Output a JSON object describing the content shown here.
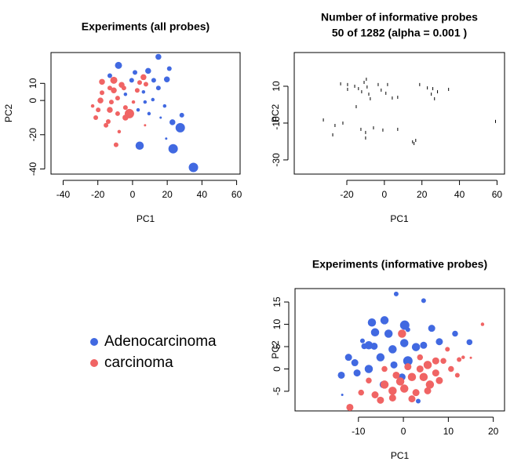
{
  "chart_data": [
    {
      "type": "scatter",
      "title": "Experiments (all probes)",
      "x_label": "PC1",
      "y_label": "PC2",
      "xlim": [
        -47,
        62
      ],
      "ylim": [
        -43,
        28
      ],
      "xticks": [
        -40,
        -20,
        0,
        20,
        40,
        60
      ],
      "yticks": [
        -40,
        -20,
        0,
        10
      ],
      "series": [
        {
          "name": "Adenocarcinoma",
          "color": "#4169e1",
          "x": [
            -8.1,
            14.9,
            1.4,
            9.0,
            21.2,
            19.8,
            12.2,
            6.3,
            14.9,
            28.4,
            23.0,
            27.5,
            4.1,
            23.4,
            35.1,
            11.7,
            18.5,
            3.2,
            -0.5,
            9.5,
            19.4,
            -4.1,
            16.2,
            7.2,
            -13.1
          ],
          "values": [
            20.5,
            25.5,
            16.4,
            17.3,
            18.6,
            12.3,
            11.8,
            5.0,
            7.3,
            -8.6,
            -12.7,
            -15.9,
            -26.4,
            -28.2,
            -39.1,
            0.5,
            -3.2,
            -5.5,
            11.8,
            -7.7,
            -22.3,
            3.6,
            -10,
            -0.9,
            14.5
          ],
          "sizes": [
            3,
            2.5,
            2,
            2.5,
            2,
            2.5,
            2,
            1.5,
            2,
            2,
            2.5,
            4,
            3.5,
            4,
            4,
            1.5,
            1.5,
            1.5,
            2,
            1.5,
            1,
            1.5,
            1,
            1.5,
            2
          ]
        },
        {
          "name": "carcinoma",
          "color": "#f06464",
          "x": [
            -17.6,
            -10.8,
            -6.3,
            -13.1,
            -18.5,
            -8.6,
            -1.8,
            -4.1,
            -13.1,
            -21.2,
            -15.3,
            -9.5,
            -7.7,
            6.3,
            7.7,
            -12.2,
            -23,
            -17.6,
            -5,
            0.5,
            2.7,
            -8.6,
            -14,
            -19.8,
            -10.8,
            -4.1,
            7.2,
            4.1
          ],
          "values": [
            10.9,
            11.8,
            9.1,
            7.3,
            0,
            1.4,
            -7.7,
            -10,
            -5.5,
            -10,
            -14.5,
            -25.9,
            -18.2,
            13.6,
            9.5,
            -0.9,
            -3.2,
            4.5,
            7.3,
            -0.9,
            5.9,
            -7.7,
            -12.3,
            -5.5,
            5.9,
            -4.1,
            -14.5,
            10.5
          ],
          "sizes": [
            2.5,
            3,
            2.5,
            2,
            2.5,
            2,
            4,
            2.5,
            2.5,
            2,
            2,
            2,
            1.5,
            2.5,
            2,
            2,
            1.5,
            2,
            2,
            1.5,
            2,
            2,
            2,
            2,
            2.5,
            2,
            1,
            2
          ]
        }
      ]
    },
    {
      "type": "dash",
      "title": "Number of informative probes",
      "subtitle": "50 of 1282 (alpha = 0.001 )",
      "x_label": "PC1",
      "y_label": "PC2",
      "xlim": [
        -48,
        64
      ],
      "ylim": [
        -37.7,
        28.3
      ],
      "xticks": [
        -20,
        0,
        20,
        40,
        60
      ],
      "yticks": [
        -30,
        -10,
        10
      ],
      "color": "#000000",
      "x": [
        -23.3,
        -19.6,
        -19.6,
        -15.8,
        -13.8,
        -12.1,
        -10.8,
        -9.6,
        -9.2,
        -8.3,
        -7.5,
        -3.3,
        -1.7,
        0.8,
        1.7,
        4.2,
        7.1,
        18.8,
        22.9,
        25,
        25.8,
        26.7,
        28.3,
        34.2,
        -15,
        -32.5,
        -26.3,
        -22.1,
        -27.5,
        -12.5,
        -10,
        -5.8,
        -0.8,
        7.1,
        15,
        16.7,
        15.8,
        59.2,
        -10
      ],
      "values": [
        11.3,
        10.9,
        8.3,
        10,
        8.7,
        7.0,
        12.1,
        13.8,
        9.6,
        5.7,
        3.2,
        10.9,
        7.9,
        6.2,
        10.9,
        3.6,
        4.0,
        10.9,
        9.1,
        5.7,
        8.7,
        3.2,
        7.0,
        8.3,
        -1.1,
        -8.3,
        -11.3,
        -10,
        -16.4,
        -13.4,
        -15.1,
        -12.6,
        -13.8,
        -13.4,
        -20.2,
        -19.4,
        -21.1,
        -9.1,
        -18.1
      ]
    },
    {
      "type": "scatter",
      "title": "Experiments (informative probes)",
      "x_label": "PC1",
      "y_label": "PC2",
      "xlim": [
        -24.1,
        22.5
      ],
      "ylim": [
        -9.4,
        18
      ],
      "xticks": [
        -10,
        0,
        10,
        20
      ],
      "yticks": [
        -5,
        0,
        5,
        10,
        15
      ],
      "series": [
        {
          "color": "#4169e1",
          "x": [
            -1.6,
            4.5,
            -7,
            -4.2,
            0.3,
            6.3,
            0.2,
            -7.7,
            -9.1,
            -3.3,
            -6.3,
            -2.4,
            1,
            -5.1,
            -2.1,
            -12.2,
            -10.8,
            -7.7,
            -4.5,
            -0.3,
            14.7,
            8,
            11.5,
            3.3,
            -13.6,
            -13.8,
            -10.3,
            -8.7,
            -6.5,
            2.8,
            4.5,
            1
          ],
          "values": [
            16.8,
            15.3,
            10.4,
            10.9,
            9.8,
            9.1,
            5.8,
            5.3,
            6.3,
            7.9,
            8.2,
            4.4,
            1.8,
            2.6,
            0.9,
            2.6,
            1.4,
            0,
            -3.5,
            -1.8,
            6,
            6.1,
            7.9,
            -7.2,
            -5.8,
            -1.4,
            -0.9,
            5.1,
            5.1,
            4.9,
            5.3,
            8.8
          ],
          "sizes": [
            2,
            2,
            3.5,
            3.5,
            4,
            3,
            3.5,
            3.5,
            2,
            3.5,
            3.5,
            3.5,
            4,
            3.5,
            3,
            3,
            3,
            3.5,
            3,
            3,
            2.5,
            3,
            2.5,
            2,
            1,
            3,
            3,
            2.5,
            3,
            3.5,
            3,
            2
          ]
        },
        {
          "color": "#f06464",
          "x": [
            -11.9,
            -9.4,
            -6.3,
            -4.2,
            -2.4,
            -0.7,
            0.2,
            1.9,
            3.7,
            5.4,
            7.2,
            8.9,
            5.9,
            2.8,
            -2.4,
            -5.1,
            4.5,
            8,
            10.6,
            12.4,
            9.8,
            13.3,
            15,
            17.6,
            -0.3,
            1,
            -4.2,
            -1.6,
            -7.7,
            5.4,
            1.9,
            7.2,
            3.7,
            12
          ],
          "values": [
            -8.6,
            -5.3,
            -5.8,
            -3.5,
            -4.9,
            -2.8,
            -4.4,
            -1.8,
            0,
            0.9,
            -0.9,
            1.8,
            -3.5,
            -5.3,
            -6.5,
            -7,
            -1.8,
            -2.6,
            0,
            2.1,
            4.4,
            2.6,
            2.5,
            10,
            7.9,
            0.5,
            0,
            -1.4,
            -2.6,
            -4.9,
            -6.7,
            1.8,
            2.6,
            -1.4
          ],
          "sizes": [
            3,
            2.5,
            3,
            3.5,
            3.5,
            3.5,
            3.5,
            3.5,
            3,
            3.5,
            3,
            2.5,
            3.5,
            3,
            3,
            3,
            3.5,
            3,
            2.5,
            2,
            2,
            1.5,
            1,
            1.5,
            3.5,
            3,
            2.5,
            3,
            2.5,
            3,
            3,
            3,
            2.5,
            2
          ]
        }
      ]
    }
  ]
}
